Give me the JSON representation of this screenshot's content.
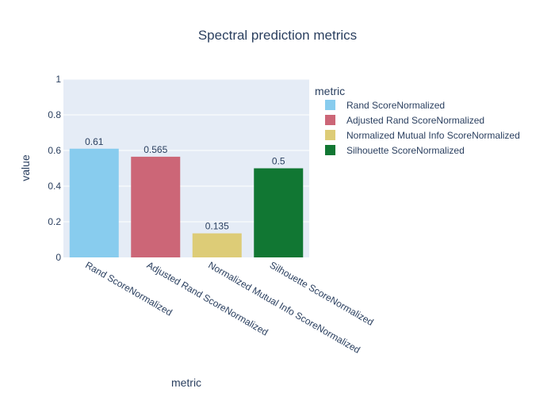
{
  "chart_data": {
    "type": "bar",
    "title": "Spectral prediction metrics",
    "xlabel": "metric",
    "ylabel": "value",
    "legend_title": "metric",
    "legend_position": "top-right",
    "ylim": [
      0,
      1
    ],
    "yticks": [
      "0",
      "0.2",
      "0.4",
      "0.6",
      "0.8",
      "1"
    ],
    "ytick_values": [
      0,
      0.2,
      0.4,
      0.6,
      0.8,
      1
    ],
    "grid": true,
    "categories": [
      "Rand ScoreNormalized",
      "Adjusted Rand ScoreNormalized",
      "Normalized Mutual Info ScoreNormalized",
      "Silhouette ScoreNormalized"
    ],
    "values": [
      0.61,
      0.565,
      0.135,
      0.5
    ],
    "value_labels": [
      "0.61",
      "0.565",
      "0.135",
      "0.5"
    ],
    "colors": [
      "#88ccee",
      "#cc6677",
      "#ddcc77",
      "#117733"
    ]
  }
}
